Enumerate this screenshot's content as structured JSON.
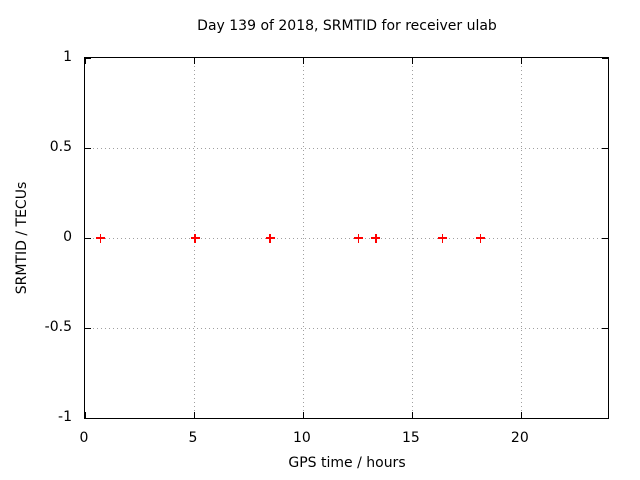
{
  "chart_data": {
    "type": "scatter",
    "title": "Day 139 of 2018, SRMTID for receiver ulab",
    "xlabel": "GPS time / hours",
    "ylabel": "SRMTID / TECUs",
    "xlim": [
      0,
      24
    ],
    "ylim": [
      -1,
      1
    ],
    "xticks": [
      0,
      5,
      10,
      15,
      20
    ],
    "yticks": [
      -1,
      -0.5,
      0,
      0.5,
      1
    ],
    "grid": true,
    "grid_style": "dotted",
    "legend_position": "none",
    "series": [
      {
        "name": "SRMTID",
        "marker": "plus",
        "color": "#ff0000",
        "x": [
          0.7,
          5.05,
          8.5,
          12.55,
          13.35,
          16.4,
          18.15
        ],
        "y": [
          0,
          0,
          0,
          0,
          0,
          0,
          0
        ]
      }
    ],
    "colors": {
      "background": "#ffffff",
      "frame": "#000000",
      "grid": "#a0a0a0",
      "text": "#000000",
      "marker": "#ff0000"
    }
  }
}
